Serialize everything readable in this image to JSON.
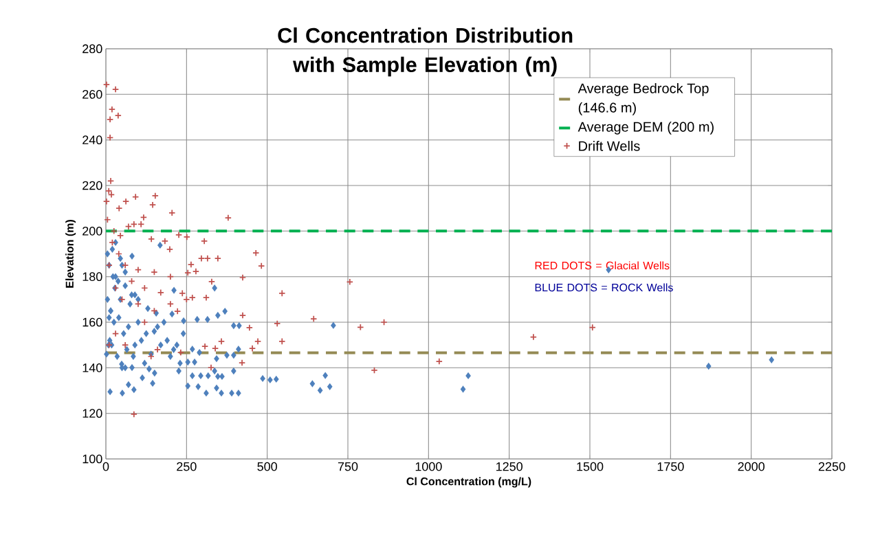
{
  "chart_data": {
    "type": "scatter",
    "title": "Cl Concentration Distribution with Sample Elevation (m)",
    "xlabel": "Cl Concentration (mg/L)",
    "ylabel": "Elevation (m)",
    "xlim": [
      0,
      2250
    ],
    "ylim": [
      100,
      280
    ],
    "xticks": [
      0,
      250,
      500,
      750,
      1000,
      1250,
      1500,
      1750,
      2000,
      2250
    ],
    "yticks": [
      100,
      120,
      140,
      160,
      180,
      200,
      220,
      240,
      260,
      280
    ],
    "grid": true,
    "legend": "top right",
    "ref_lines": [
      {
        "axis": "y",
        "value": 146.6,
        "label": "Average Bedrock Top (146.6 m)",
        "color": "#948a54",
        "line_style": "dashed"
      },
      {
        "axis": "y",
        "value": 200,
        "label": "Average DEM  (200 m)",
        "color": "#00b050",
        "line_style": "dashed"
      }
    ],
    "annotations": [
      "RED DOTS = Glacial Wells",
      "BLUE DOTS = ROCK Wells"
    ],
    "series": [
      {
        "color": "#4f81bd",
        "marker": "diamond",
        "x": [
          168,
          81,
          2,
          60,
          211,
          337,
          369,
          347,
          283,
          315,
          396,
          413,
          241,
          205,
          156,
          411,
          268,
          290,
          343,
          375,
          396,
          396,
          337,
          275,
          254,
          226,
          268,
          294,
          317,
          347,
          360,
          254,
          286,
          311,
          343,
          358,
          390,
          411,
          486,
          509,
          528,
          145,
          87,
          51,
          13,
          113,
          81,
          49,
          151,
          134,
          70,
          705,
          640,
          664,
          680,
          694,
          1107,
          1123,
          1558,
          1868,
          2063,
          5,
          10,
          20,
          30,
          45,
          60,
          80,
          100,
          130,
          160,
          190,
          220,
          240,
          5,
          15,
          25,
          40,
          55,
          70,
          90,
          110,
          140,
          170,
          200,
          230,
          8,
          18,
          35,
          50,
          65,
          85,
          120,
          150,
          180,
          210,
          12,
          28,
          45,
          75,
          100,
          125,
          10,
          22,
          38,
          60,
          90,
          15,
          30,
          50
        ],
        "values": [
          193.8,
          189,
          146,
          140,
          174,
          175,
          164.8,
          163,
          161.2,
          161.2,
          158.5,
          158.5,
          160.6,
          163.6,
          164,
          148.2,
          148.2,
          146.7,
          144,
          145.5,
          145.5,
          138.6,
          138.6,
          142.5,
          142.5,
          138.6,
          136.5,
          136.5,
          136.5,
          136.2,
          136.2,
          132,
          131.7,
          128.9,
          131.1,
          128.9,
          128.9,
          128.9,
          135.3,
          134.7,
          135,
          133.2,
          130.4,
          128.9,
          129.5,
          135.6,
          140.1,
          141.6,
          137.7,
          139.5,
          132.6,
          158.6,
          133,
          130.1,
          136.6,
          131.7,
          130.6,
          136.5,
          183,
          140.7,
          143.5,
          190,
          185,
          192,
          180,
          188,
          176,
          172,
          170,
          166,
          158,
          152,
          150,
          155,
          170,
          165,
          160,
          162,
          155,
          158,
          150,
          152,
          146,
          150,
          145,
          142,
          150,
          150,
          145,
          140,
          148,
          145,
          142,
          156,
          160,
          148,
          152,
          175,
          170,
          168,
          160,
          155,
          162,
          180,
          178,
          182,
          172,
          165,
          195,
          185
        ]
      },
      {
        "name": "Drift Wells",
        "color": "#c0504d",
        "marker": "cross",
        "x": [
          2,
          30,
          19,
          38,
          13,
          13,
          15,
          9,
          17,
          92,
          153,
          145,
          205,
          379,
          117,
          62,
          2,
          41,
          87,
          109,
          226,
          251,
          305,
          183,
          141,
          198,
          296,
          315,
          347,
          465,
          482,
          264,
          279,
          424,
          328,
          254,
          546,
          237,
          268,
          311,
          222,
          424,
          445,
          531,
          644,
          358,
          471,
          546,
          454,
          307,
          339,
          232,
          422,
          326,
          87,
          756,
          789,
          862,
          832,
          1033,
          1325,
          1508,
          20,
          40,
          10,
          60,
          100,
          150,
          200,
          30,
          80,
          120,
          170,
          50,
          100,
          150,
          200,
          250,
          30,
          60,
          120,
          160,
          140,
          10,
          5,
          25,
          45,
          70
        ],
        "values": [
          264.3,
          262.2,
          253.4,
          250.7,
          249,
          241,
          222,
          217.6,
          216,
          215,
          215.5,
          211.5,
          208,
          205.8,
          206,
          213,
          213,
          210,
          203,
          203,
          198.3,
          197.4,
          195.6,
          195.6,
          196.5,
          192,
          188,
          188,
          188,
          190.4,
          184.7,
          185.3,
          182.3,
          179.6,
          177.8,
          181.7,
          172.7,
          172.7,
          170.8,
          170.8,
          164.8,
          163,
          157.6,
          159.4,
          161.5,
          151.6,
          151.6,
          151.6,
          148.5,
          149.4,
          148.5,
          146.7,
          142.2,
          140.1,
          119.6,
          177.7,
          157.8,
          160,
          138.9,
          142.8,
          153.5,
          157.7,
          195,
          190,
          185,
          185,
          183,
          182,
          180,
          175,
          178,
          175,
          173,
          170,
          168,
          165,
          168,
          170,
          155,
          150,
          160,
          148,
          145,
          150,
          205,
          200,
          198,
          202
        ]
      }
    ]
  }
}
